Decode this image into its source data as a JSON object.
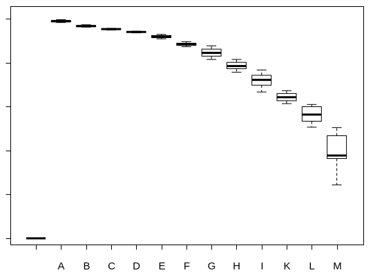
{
  "chart_data": {
    "type": "boxplot",
    "categories": [
      "",
      "A",
      "B",
      "C",
      "D",
      "E",
      "F",
      "G",
      "H",
      "I",
      "K",
      "L",
      "M"
    ],
    "ylim": [
      0.0,
      1.05
    ],
    "grid": false,
    "y_tick_labels_shown": false,
    "boxes": [
      {
        "label": "",
        "min": 0.0,
        "q1": 0.0,
        "median": 0.0,
        "q3": 0.0,
        "max": 0.0
      },
      {
        "label": "A",
        "min": 0.982,
        "q1": 0.985,
        "median": 0.988,
        "q3": 0.992,
        "max": 0.995
      },
      {
        "label": "B",
        "min": 0.961,
        "q1": 0.963,
        "median": 0.966,
        "q3": 0.969,
        "max": 0.972
      },
      {
        "label": "C",
        "min": 0.948,
        "q1": 0.95,
        "median": 0.952,
        "q3": 0.954,
        "max": 0.956
      },
      {
        "label": "D",
        "min": 0.935,
        "q1": 0.937,
        "median": 0.939,
        "q3": 0.941,
        "max": 0.943
      },
      {
        "label": "E",
        "min": 0.908,
        "q1": 0.913,
        "median": 0.918,
        "q3": 0.923,
        "max": 0.928
      },
      {
        "label": "F",
        "min": 0.872,
        "q1": 0.878,
        "median": 0.883,
        "q3": 0.888,
        "max": 0.895
      },
      {
        "label": "G",
        "min": 0.814,
        "q1": 0.829,
        "median": 0.844,
        "q3": 0.861,
        "max": 0.876
      },
      {
        "label": "H",
        "min": 0.756,
        "q1": 0.772,
        "median": 0.784,
        "q3": 0.801,
        "max": 0.814
      },
      {
        "label": "I",
        "min": 0.666,
        "q1": 0.697,
        "median": 0.721,
        "q3": 0.742,
        "max": 0.766
      },
      {
        "label": "K",
        "min": 0.613,
        "q1": 0.626,
        "median": 0.642,
        "q3": 0.659,
        "max": 0.672
      },
      {
        "label": "L",
        "min": 0.506,
        "q1": 0.533,
        "median": 0.563,
        "q3": 0.599,
        "max": 0.609
      },
      {
        "label": "M",
        "min": 0.243,
        "q1": 0.363,
        "median": 0.377,
        "q3": 0.467,
        "max": 0.504
      }
    ]
  }
}
